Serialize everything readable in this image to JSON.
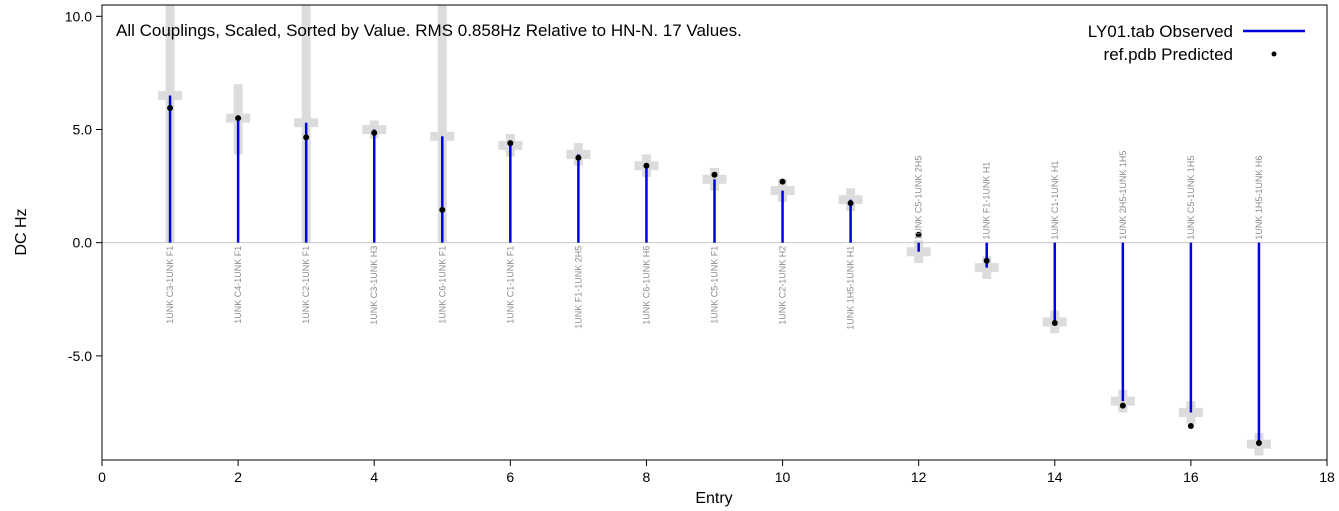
{
  "chart_data": {
    "type": "scatter",
    "title": "All Couplings, Scaled, Sorted by Value. RMS 0.858Hz Relative to HN-N. 17 Values.",
    "xlabel": "Entry",
    "ylabel": "DC Hz",
    "xlim": [
      0,
      18
    ],
    "ylim": [
      -9.6,
      10.5
    ],
    "x_ticks": [
      "0",
      "2",
      "4",
      "6",
      "8",
      "10",
      "12",
      "14",
      "16",
      "18"
    ],
    "y_ticks": [
      "-5.0",
      "0.0",
      "5.0",
      "10.0"
    ],
    "grid": false,
    "legend_position": "top-right",
    "colors": {
      "observed": "#0000e0",
      "predicted": "#000000",
      "error": "#dcdcdc",
      "zero_line": "#c8c8c8"
    },
    "series": [
      {
        "name": "LY01.tab Observed",
        "style": "vertical-line",
        "color": "#0000e0",
        "values": [
          6.5,
          5.5,
          5.3,
          5.0,
          4.7,
          4.3,
          3.9,
          3.4,
          2.8,
          2.3,
          1.9,
          -0.4,
          -1.1,
          -3.5,
          -7.0,
          -7.5,
          -8.9
        ]
      },
      {
        "name": "ref.pdb Predicted",
        "style": "dot",
        "color": "#000000",
        "values": [
          5.95,
          5.5,
          4.65,
          4.85,
          1.45,
          4.4,
          3.75,
          3.4,
          3.0,
          2.7,
          1.75,
          0.35,
          -0.8,
          -3.55,
          -7.2,
          -8.1,
          -8.85
        ]
      }
    ],
    "errors": [
      {
        "low": 0.0,
        "high": 10.5
      },
      {
        "low": 3.9,
        "high": 7.0
      },
      {
        "low": 0.0,
        "high": 10.5
      },
      {
        "low": 4.6,
        "high": 5.4
      },
      {
        "low": 0.0,
        "high": 10.5
      },
      {
        "low": 3.8,
        "high": 4.8
      },
      {
        "low": 3.4,
        "high": 4.4
      },
      {
        "low": 2.9,
        "high": 3.9
      },
      {
        "low": 2.3,
        "high": 3.3
      },
      {
        "low": 1.8,
        "high": 2.8
      },
      {
        "low": 1.4,
        "high": 2.4
      },
      {
        "low": -0.9,
        "high": 0.1
      },
      {
        "low": -1.6,
        "high": -0.6
      },
      {
        "low": -4.0,
        "high": -3.0
      },
      {
        "low": -7.5,
        "high": -6.5
      },
      {
        "low": -8.0,
        "high": -7.0
      },
      {
        "low": -9.4,
        "high": -8.4
      }
    ],
    "pair_labels": [
      {
        "x": 1,
        "text": "1UNK C3-1UNK F1",
        "position": "below"
      },
      {
        "x": 2,
        "text": "1UNK C4-1UNK F1",
        "position": "below"
      },
      {
        "x": 3,
        "text": "1UNK C2-1UNK F1",
        "position": "below"
      },
      {
        "x": 4,
        "text": "1UNK C3-1UNK H3",
        "position": "below"
      },
      {
        "x": 5,
        "text": "1UNK C6-1UNK F1",
        "position": "below"
      },
      {
        "x": 6,
        "text": "1UNK C1-1UNK F1",
        "position": "below"
      },
      {
        "x": 7,
        "text": "1UNK F1-1UNK 2H5",
        "position": "below"
      },
      {
        "x": 8,
        "text": "1UNK C6-1UNK H6",
        "position": "below"
      },
      {
        "x": 9,
        "text": "1UNK C5-1UNK F1",
        "position": "below"
      },
      {
        "x": 10,
        "text": "1UNK C2-1UNK H2",
        "position": "below"
      },
      {
        "x": 11,
        "text": "1UNK 1H5-1UNK H1",
        "position": "below"
      },
      {
        "x": 12,
        "text": "1UNK C5-1UNK 2H5",
        "position": "above"
      },
      {
        "x": 13,
        "text": "1UNK F1-1UNK H1",
        "position": "above"
      },
      {
        "x": 14,
        "text": "1UNK C1-1UNK H1",
        "position": "above"
      },
      {
        "x": 15,
        "text": "1UNK 2H5-1UNK 1H5",
        "position": "above"
      },
      {
        "x": 16,
        "text": "1UNK C5-1UNK 1H5",
        "position": "above"
      },
      {
        "x": 17,
        "text": "1UNK 1H5-1UNK H6",
        "position": "above"
      }
    ]
  }
}
